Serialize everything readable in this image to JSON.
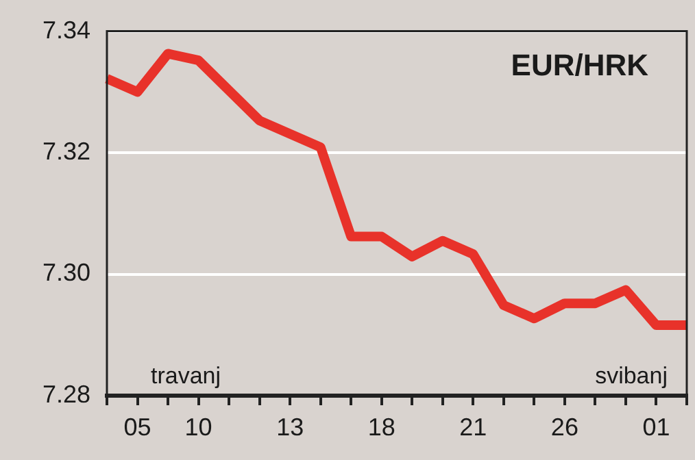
{
  "chart_data": {
    "type": "line",
    "title": "EUR/HRK",
    "categories": [
      null,
      "05",
      null,
      "10",
      null,
      null,
      "13",
      null,
      null,
      "18",
      null,
      null,
      "21",
      null,
      null,
      "26",
      null,
      null,
      "01",
      null
    ],
    "series": [
      {
        "color": "#e8322a",
        "values": [
          7.3322,
          7.33,
          7.3363,
          7.3352,
          null,
          7.3253,
          null,
          7.3209,
          7.3062,
          7.3062,
          7.3029,
          7.3055,
          7.3033,
          7.2949,
          7.2927,
          7.2952,
          7.2952,
          7.2974,
          7.2916,
          7.2916
        ]
      }
    ],
    "ylim": [
      7.28,
      7.34
    ],
    "yticks": [
      7.28,
      {
        "value": 7.3,
        "label": "7.30"
      },
      7.32,
      7.34
    ],
    "grid": "y",
    "legend": false,
    "marker": "none",
    "line_style": "solid",
    "annotations": [
      "travanj",
      "svibanj"
    ]
  }
}
